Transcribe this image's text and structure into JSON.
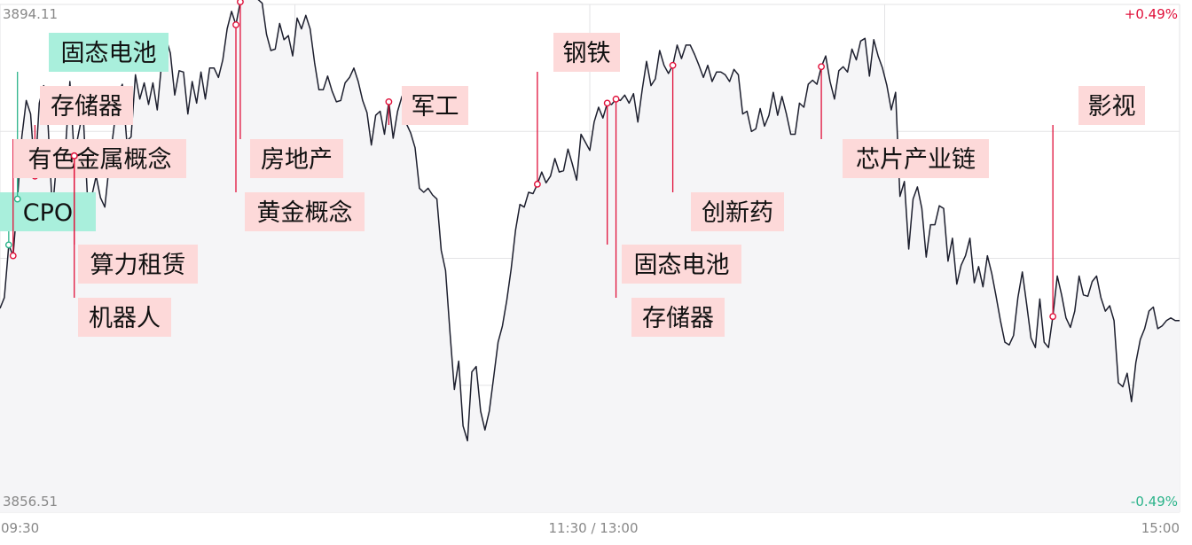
{
  "chart_data": {
    "type": "line",
    "title": "",
    "y_max_label": "3894.11",
    "y_min_label": "3856.51",
    "pct_max_label": "+0.49%",
    "pct_min_label": "-0.49%",
    "ylim": [
      3856.51,
      3894.11
    ],
    "x_labels": [
      "09:30",
      "11:30 / 13:00",
      "15:00"
    ],
    "grid": true,
    "colors": {
      "line": "#1d1f2e",
      "area": "#f5f5f7",
      "up": "#e0103a",
      "down": "#2bb38a",
      "grid": "#e3e3e6",
      "tag_red_bg": "#fdd9d9",
      "tag_green_bg": "#a9efdc",
      "axis_text": "#888888"
    },
    "series": [
      {
        "name": "index",
        "values": [
          3871.6,
          3872.4,
          3876.3,
          3875.5,
          3879.7,
          3884.3,
          3887.0,
          3886.0,
          3881.4,
          3886.8,
          3888.1,
          3885.2,
          3878.8,
          3882.6,
          3883.9,
          3883.5,
          3888.4,
          3882.9,
          3884.6,
          3886.2,
          3880.0,
          3879.9,
          3881.4,
          3879.8,
          3879.1,
          3882.2,
          3884.8,
          3887.4,
          3888.2,
          3884.0,
          3884.3,
          3888.9,
          3887.1,
          3888.3,
          3886.7,
          3888.3,
          3886.3,
          3889.8,
          3891.6,
          3890.5,
          3887.4,
          3889.2,
          3889.1,
          3886.0,
          3888.4,
          3886.8,
          3889.1,
          3887.1,
          3889.4,
          3889.4,
          3888.7,
          3890.0,
          3892.3,
          3893.6,
          3892.6,
          3894.3,
          3895.3,
          3894.5,
          3894.9,
          3894.5,
          3894.2,
          3891.9,
          3890.7,
          3890.8,
          3892.7,
          3891.5,
          3891.8,
          3890.3,
          3893.1,
          3892.3,
          3893.3,
          3892.3,
          3889.8,
          3887.8,
          3887.8,
          3888.8,
          3887.7,
          3886.9,
          3887.0,
          3888.3,
          3888.7,
          3889.4,
          3888.4,
          3887.0,
          3886.1,
          3883.7,
          3885.9,
          3886.2,
          3884.5,
          3886.9,
          3884.2,
          3886.2,
          3887.3,
          3885.3,
          3884.6,
          3883.5,
          3880.5,
          3880.2,
          3880.5,
          3880.0,
          3879.7,
          3875.9,
          3874.4,
          3869.8,
          3865.6,
          3867.7,
          3862.9,
          3861.8,
          3866.9,
          3867.3,
          3864.0,
          3862.6,
          3864.0,
          3866.5,
          3869.1,
          3870.3,
          3872.2,
          3874.5,
          3877.4,
          3879.3,
          3879.1,
          3880.2,
          3880.1,
          3880.8,
          3881.7,
          3880.9,
          3881.4,
          3882.7,
          3881.7,
          3881.8,
          3883.4,
          3882.3,
          3881.1,
          3884.5,
          3883.9,
          3883.3,
          3885.4,
          3886.5,
          3885.7,
          3886.8,
          3886.7,
          3887.1,
          3887.0,
          3887.4,
          3886.8,
          3887.5,
          3885.4,
          3887.8,
          3889.9,
          3888.1,
          3888.6,
          3890.7,
          3889.6,
          3889.0,
          3889.6,
          3891.1,
          3890.1,
          3891.1,
          3891.1,
          3890.4,
          3889.6,
          3888.7,
          3889.6,
          3888.4,
          3889.1,
          3889.1,
          3888.9,
          3888.4,
          3889.3,
          3888.9,
          3886.0,
          3886.2,
          3884.7,
          3884.9,
          3886.4,
          3885.1,
          3885.9,
          3887.6,
          3885.9,
          3887.3,
          3886.0,
          3884.5,
          3884.5,
          3886.8,
          3886.5,
          3888.2,
          3888.5,
          3888.2,
          3889.5,
          3890.3,
          3888.4,
          3887.1,
          3889.2,
          3889.5,
          3889.1,
          3890.8,
          3890.0,
          3891.4,
          3891.6,
          3888.8,
          3891.5,
          3890.3,
          3889.4,
          3888.1,
          3886.3,
          3887.6,
          3879.9,
          3881.0,
          3876.0,
          3879.7,
          3880.6,
          3879.0,
          3875.4,
          3877.8,
          3877.8,
          3879.2,
          3879.0,
          3875.1,
          3876.8,
          3873.4,
          3874.8,
          3875.5,
          3876.8,
          3873.5,
          3874.7,
          3873.2,
          3875.5,
          3874.2,
          3872.5,
          3870.7,
          3869.1,
          3868.9,
          3869.6,
          3872.4,
          3874.3,
          3871.9,
          3869.4,
          3868.7,
          3872.3,
          3869.1,
          3868.7,
          3871.0,
          3874.0,
          3872.6,
          3870.9,
          3870.2,
          3871.4,
          3874.0,
          3872.6,
          3872.5,
          3873.6,
          3874.0,
          3872.4,
          3871.4,
          3871.8,
          3870.7,
          3866.1,
          3865.8,
          3866.8,
          3864.7,
          3867.6,
          3869.3,
          3870.1,
          3871.4,
          3871.7,
          3870.1,
          3870.3,
          3870.7,
          3870.9,
          3870.7,
          3870.7
        ]
      }
    ],
    "annotations": [
      {
        "label": "CPO",
        "index": 2,
        "tone": "green"
      },
      {
        "label": "固态电池",
        "index": 4,
        "tone": "green"
      },
      {
        "label": "存储器",
        "index": 8,
        "tone": "red"
      },
      {
        "label": "有色金属概念",
        "index": 3,
        "tone": "red"
      },
      {
        "label": "算力租赁",
        "index": 17,
        "tone": "red"
      },
      {
        "label": "机器人",
        "index": 17,
        "tone": "red"
      },
      {
        "label": "房地产",
        "index": 55,
        "tone": "red"
      },
      {
        "label": "黄金概念",
        "index": 54,
        "tone": "red"
      },
      {
        "label": "军工",
        "index": 89,
        "tone": "red"
      },
      {
        "label": "钢铁",
        "index": 123,
        "tone": "red"
      },
      {
        "label": "固态电池",
        "index": 139,
        "tone": "red"
      },
      {
        "label": "存储器",
        "index": 141,
        "tone": "red"
      },
      {
        "label": "创新药",
        "index": 154,
        "tone": "red"
      },
      {
        "label": "芯片产业链",
        "index": 188,
        "tone": "red"
      },
      {
        "label": "影视",
        "index": 241,
        "tone": "red"
      }
    ]
  }
}
